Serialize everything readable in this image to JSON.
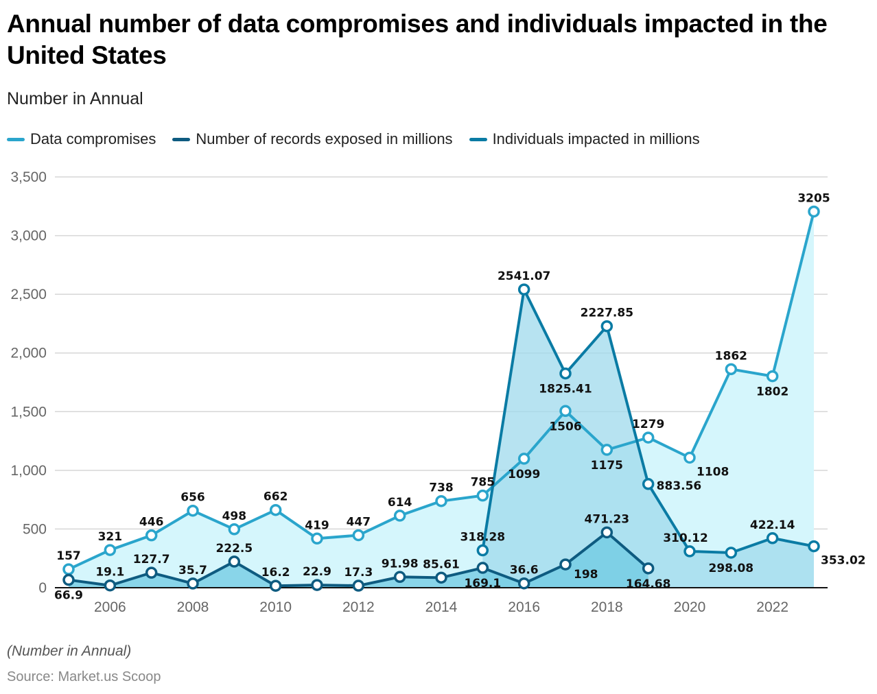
{
  "chart_data": {
    "type": "area",
    "title": "Annual number of data compromises and individuals impacted in the United States",
    "subtitle": "Number in Annual",
    "xlabel": "",
    "ylabel": "",
    "x": [
      2005,
      2006,
      2007,
      2008,
      2009,
      2010,
      2011,
      2012,
      2013,
      2014,
      2015,
      2016,
      2017,
      2018,
      2019,
      2020,
      2021,
      2022,
      2023
    ],
    "x_tick_labels": [
      "2006",
      "2008",
      "2010",
      "2012",
      "2014",
      "2016",
      "2018",
      "2020",
      "2022"
    ],
    "x_ticks": [
      2006,
      2008,
      2010,
      2012,
      2014,
      2016,
      2018,
      2020,
      2022
    ],
    "ylim": [
      0,
      3500
    ],
    "y_ticks": [
      0,
      500,
      1000,
      1500,
      2000,
      2500,
      3000,
      3500
    ],
    "y_tick_labels": [
      "0",
      "500",
      "1,000",
      "1,500",
      "2,000",
      "2,500",
      "3,000",
      "3,500"
    ],
    "grid": true,
    "legend_position": "top-left",
    "series": [
      {
        "name": "Data compromises",
        "color": "#2AA5CC",
        "fill": "#D5F6FC",
        "x": [
          2005,
          2006,
          2007,
          2008,
          2009,
          2010,
          2011,
          2012,
          2013,
          2014,
          2015,
          2016,
          2017,
          2018,
          2019,
          2020,
          2021,
          2022,
          2023
        ],
        "values": [
          157,
          321,
          446,
          656,
          498,
          662,
          419,
          447,
          614,
          738,
          785,
          1099,
          1506,
          1175,
          1279,
          1108,
          1862,
          1802,
          3205
        ],
        "labels": [
          "157",
          "321",
          "446",
          "656",
          "498",
          "662",
          "419",
          "447",
          "614",
          "738",
          "785",
          "1099",
          "1506",
          "1175",
          "1279",
          "1108",
          "1862",
          "1802",
          "3205"
        ],
        "label_pos": [
          "above",
          "above",
          "above",
          "above",
          "above",
          "above",
          "above",
          "above",
          "above",
          "above",
          "above",
          "below",
          "below",
          "below",
          "above",
          "below-right",
          "above",
          "below",
          "above"
        ]
      },
      {
        "name": "Number of records exposed in millions",
        "color": "#0E5B80",
        "fill": "#6FC9E3",
        "x": [
          2005,
          2006,
          2007,
          2008,
          2009,
          2010,
          2011,
          2012,
          2013,
          2014,
          2015,
          2016,
          2017,
          2018,
          2019
        ],
        "values": [
          66.9,
          19.1,
          127.7,
          35.7,
          222.5,
          16.2,
          22.9,
          17.3,
          91.98,
          85.61,
          169.1,
          36.6,
          198,
          471.23,
          164.68
        ],
        "labels": [
          "66.9",
          "19.1",
          "127.7",
          "35.7",
          "222.5",
          "16.2",
          "22.9",
          "17.3",
          "91.98",
          "85.61",
          "169.1",
          "36.6",
          "198",
          "471.23",
          "164.68"
        ],
        "label_pos": [
          "below",
          "above",
          "above",
          "above",
          "above",
          "above",
          "above",
          "above",
          "above",
          "above",
          "below",
          "above",
          "right",
          "above",
          "below"
        ]
      },
      {
        "name": "Individuals impacted in millions",
        "color": "#0A7BA4",
        "fill": "#9FD9EC",
        "x": [
          2015,
          2016,
          2017,
          2018,
          2019,
          2020,
          2021,
          2022,
          2023
        ],
        "values": [
          318.28,
          2541.07,
          1825.41,
          2227.85,
          883.56,
          310.12,
          298.08,
          422.14,
          353.02
        ],
        "labels": [
          "318.28",
          "2541.07",
          "1825.41",
          "2227.85",
          "883.56",
          "310.12",
          "298.08",
          "422.14",
          "353.02"
        ],
        "label_pos": [
          "above",
          "above",
          "below",
          "above",
          "right",
          "above-left",
          "below",
          "above",
          "below-right"
        ]
      }
    ]
  },
  "header": {
    "title": "Annual number of data compromises and individuals impacted in the United States",
    "subtitle": "Number in Annual"
  },
  "legend": [
    {
      "label": "Data compromises",
      "color": "#2AA5CC"
    },
    {
      "label": "Number of records exposed in millions",
      "color": "#0E5B80"
    },
    {
      "label": "Individuals impacted in millions",
      "color": "#0A7BA4"
    }
  ],
  "footer": {
    "note": "(Number in Annual)",
    "source": "Source: Market.us Scoop"
  }
}
